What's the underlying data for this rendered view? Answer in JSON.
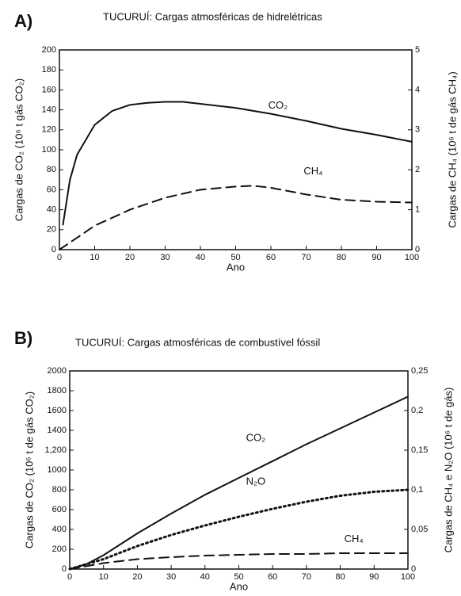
{
  "chart_data": [
    {
      "type": "line",
      "panel": "A)",
      "title": "TUCURUÍ: Cargas atmosféricas de hidrelétricas",
      "x_label": "Ano",
      "y_label": "Cargas de CO₂ (10⁶ t gás CO₂)",
      "y2_label": "Cargas de CH₄ (10⁶ t de gás CH₄)",
      "xlim": [
        0,
        100
      ],
      "xticks": [
        0,
        10,
        20,
        30,
        40,
        50,
        60,
        70,
        80,
        90,
        100
      ],
      "ylim": [
        0,
        200
      ],
      "yticks": [
        0,
        20,
        40,
        60,
        80,
        100,
        120,
        140,
        160,
        180,
        200
      ],
      "y2lim": [
        0,
        5
      ],
      "y2ticks": [
        0,
        1,
        2,
        3,
        4,
        5
      ],
      "grid": false,
      "series": [
        {
          "name": "CO₂",
          "color": "#111111",
          "dash": "solid",
          "x": [
            1,
            3,
            5,
            10,
            15,
            20,
            25,
            30,
            35,
            40,
            50,
            60,
            70,
            80,
            90,
            100
          ],
          "values": [
            25,
            70,
            95,
            125,
            139,
            145,
            147,
            148,
            148,
            146,
            142,
            136,
            129,
            121,
            115,
            108
          ]
        },
        {
          "name": "CH₄",
          "color": "#111111",
          "dash": "dashed",
          "axis": "y2",
          "x": [
            0,
            5,
            10,
            20,
            30,
            40,
            50,
            55,
            60,
            70,
            80,
            90,
            100
          ],
          "values": [
            0,
            0.3,
            0.6,
            1.0,
            1.3,
            1.5,
            1.58,
            1.6,
            1.55,
            1.38,
            1.25,
            1.2,
            1.18
          ]
        }
      ]
    },
    {
      "type": "line",
      "panel": "B)",
      "title": "TUCURUÍ: Cargas atmosféricas de combustível fóssil",
      "x_label": "Ano",
      "y_label": "Cargas de CO₂ (10⁶ t de gás CO₂)",
      "y2_label": "Cargas de CH₄ e N₂O (10⁶ t de gás)",
      "xlim": [
        0,
        100
      ],
      "xticks": [
        0,
        10,
        20,
        30,
        40,
        50,
        60,
        70,
        80,
        90,
        100
      ],
      "ylim": [
        0,
        2000
      ],
      "yticks": [
        0,
        200,
        400,
        600,
        800,
        1000,
        {
          "value": 1200,
          "label": "1,200"
        },
        1400,
        1600,
        1800,
        2000
      ],
      "y2lim": [
        0,
        0.25
      ],
      "y2ticks": [
        0,
        {
          "value": 0.05,
          "label": "0,05"
        },
        {
          "value": 0.1,
          "label": "0,1"
        },
        {
          "value": 0.15,
          "label": "0,15"
        },
        {
          "value": 0.2,
          "label": "0,2"
        },
        {
          "value": 0.25,
          "label": "0,25"
        }
      ],
      "grid": false,
      "series": [
        {
          "name": "CO₂",
          "color": "#111111",
          "dash": "solid",
          "x": [
            0,
            5,
            10,
            20,
            30,
            40,
            50,
            60,
            70,
            80,
            90,
            100
          ],
          "values": [
            0,
            50,
            140,
            360,
            560,
            750,
            920,
            1090,
            1260,
            1420,
            1580,
            1740
          ]
        },
        {
          "name": "N₂O",
          "color": "#111111",
          "dash": "dotted",
          "axis": "y2",
          "x": [
            0,
            10,
            20,
            30,
            40,
            50,
            60,
            70,
            80,
            90,
            100
          ],
          "values": [
            0,
            0.0125,
            0.029,
            0.043,
            0.055,
            0.066,
            0.076,
            0.085,
            0.0925,
            0.0975,
            0.1
          ]
        },
        {
          "name": "CH₄",
          "color": "#111111",
          "dash": "dashed",
          "axis": "y2",
          "x": [
            0,
            10,
            20,
            30,
            40,
            50,
            60,
            70,
            80,
            90,
            100
          ],
          "values": [
            0,
            0.0075,
            0.0125,
            0.015,
            0.017,
            0.018,
            0.019,
            0.019,
            0.02,
            0.02,
            0.02
          ]
        }
      ]
    }
  ]
}
